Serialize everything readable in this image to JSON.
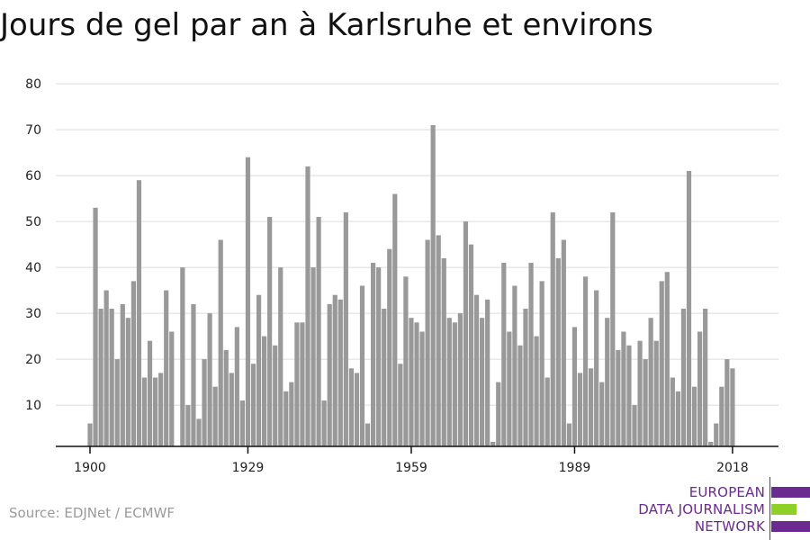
{
  "title": "Jours de gel par an à Karlsruhe et environs",
  "source": "Source: EDJNet / ECMWF",
  "logo": {
    "lines": [
      "EUROPEAN",
      "DATA JOURNALISM",
      "NETWORK"
    ],
    "colors": {
      "purple": "#6b2a8f",
      "green": "#8fd026"
    }
  },
  "chart_data": {
    "type": "bar",
    "title": "Jours de gel par an à Karlsruhe et environs",
    "xlabel": "",
    "ylabel": "",
    "x": [
      1900,
      1901,
      1902,
      1903,
      1904,
      1905,
      1906,
      1907,
      1908,
      1909,
      1910,
      1911,
      1912,
      1913,
      1914,
      1915,
      1916,
      1917,
      1918,
      1919,
      1920,
      1921,
      1922,
      1923,
      1924,
      1925,
      1926,
      1927,
      1928,
      1929,
      1930,
      1931,
      1932,
      1933,
      1934,
      1935,
      1936,
      1937,
      1938,
      1939,
      1940,
      1941,
      1942,
      1943,
      1944,
      1945,
      1946,
      1947,
      1948,
      1949,
      1950,
      1951,
      1952,
      1953,
      1954,
      1955,
      1956,
      1957,
      1958,
      1959,
      1960,
      1961,
      1962,
      1963,
      1964,
      1965,
      1966,
      1967,
      1968,
      1969,
      1970,
      1971,
      1972,
      1973,
      1974,
      1975,
      1976,
      1977,
      1978,
      1979,
      1980,
      1981,
      1982,
      1983,
      1984,
      1985,
      1986,
      1987,
      1988,
      1989,
      1990,
      1991,
      1992,
      1993,
      1994,
      1995,
      1996,
      1997,
      1998,
      1999,
      2000,
      2001,
      2002,
      2003,
      2004,
      2005,
      2006,
      2007,
      2008,
      2009,
      2010,
      2011,
      2012,
      2013,
      2014,
      2015,
      2016,
      2017,
      2018
    ],
    "values": [
      6,
      53,
      31,
      35,
      31,
      20,
      32,
      29,
      37,
      59,
      16,
      24,
      16,
      17,
      35,
      26,
      0,
      40,
      10,
      32,
      7,
      20,
      30,
      14,
      46,
      22,
      17,
      27,
      11,
      64,
      19,
      34,
      25,
      51,
      23,
      40,
      13,
      15,
      28,
      28,
      62,
      40,
      51,
      11,
      32,
      34,
      33,
      52,
      18,
      17,
      36,
      6,
      41,
      40,
      31,
      44,
      56,
      19,
      38,
      29,
      28,
      26,
      46,
      71,
      47,
      42,
      29,
      28,
      30,
      50,
      45,
      34,
      29,
      33,
      2,
      15,
      41,
      26,
      36,
      23,
      31,
      41,
      25,
      37,
      16,
      52,
      42,
      46,
      6,
      27,
      17,
      38,
      18,
      35,
      15,
      29,
      52,
      22,
      26,
      23,
      10,
      24,
      20,
      29,
      24,
      37,
      39,
      16,
      13,
      31,
      61,
      14,
      26,
      31,
      2,
      6,
      14,
      20,
      18
    ],
    "x_ticks": [
      1900,
      1929,
      1959,
      1989,
      2018
    ],
    "y_ticks": [
      10,
      20,
      30,
      40,
      50,
      60,
      70,
      80
    ],
    "ylim": [
      1,
      80
    ],
    "bar_color": "#999999",
    "grid": true
  }
}
